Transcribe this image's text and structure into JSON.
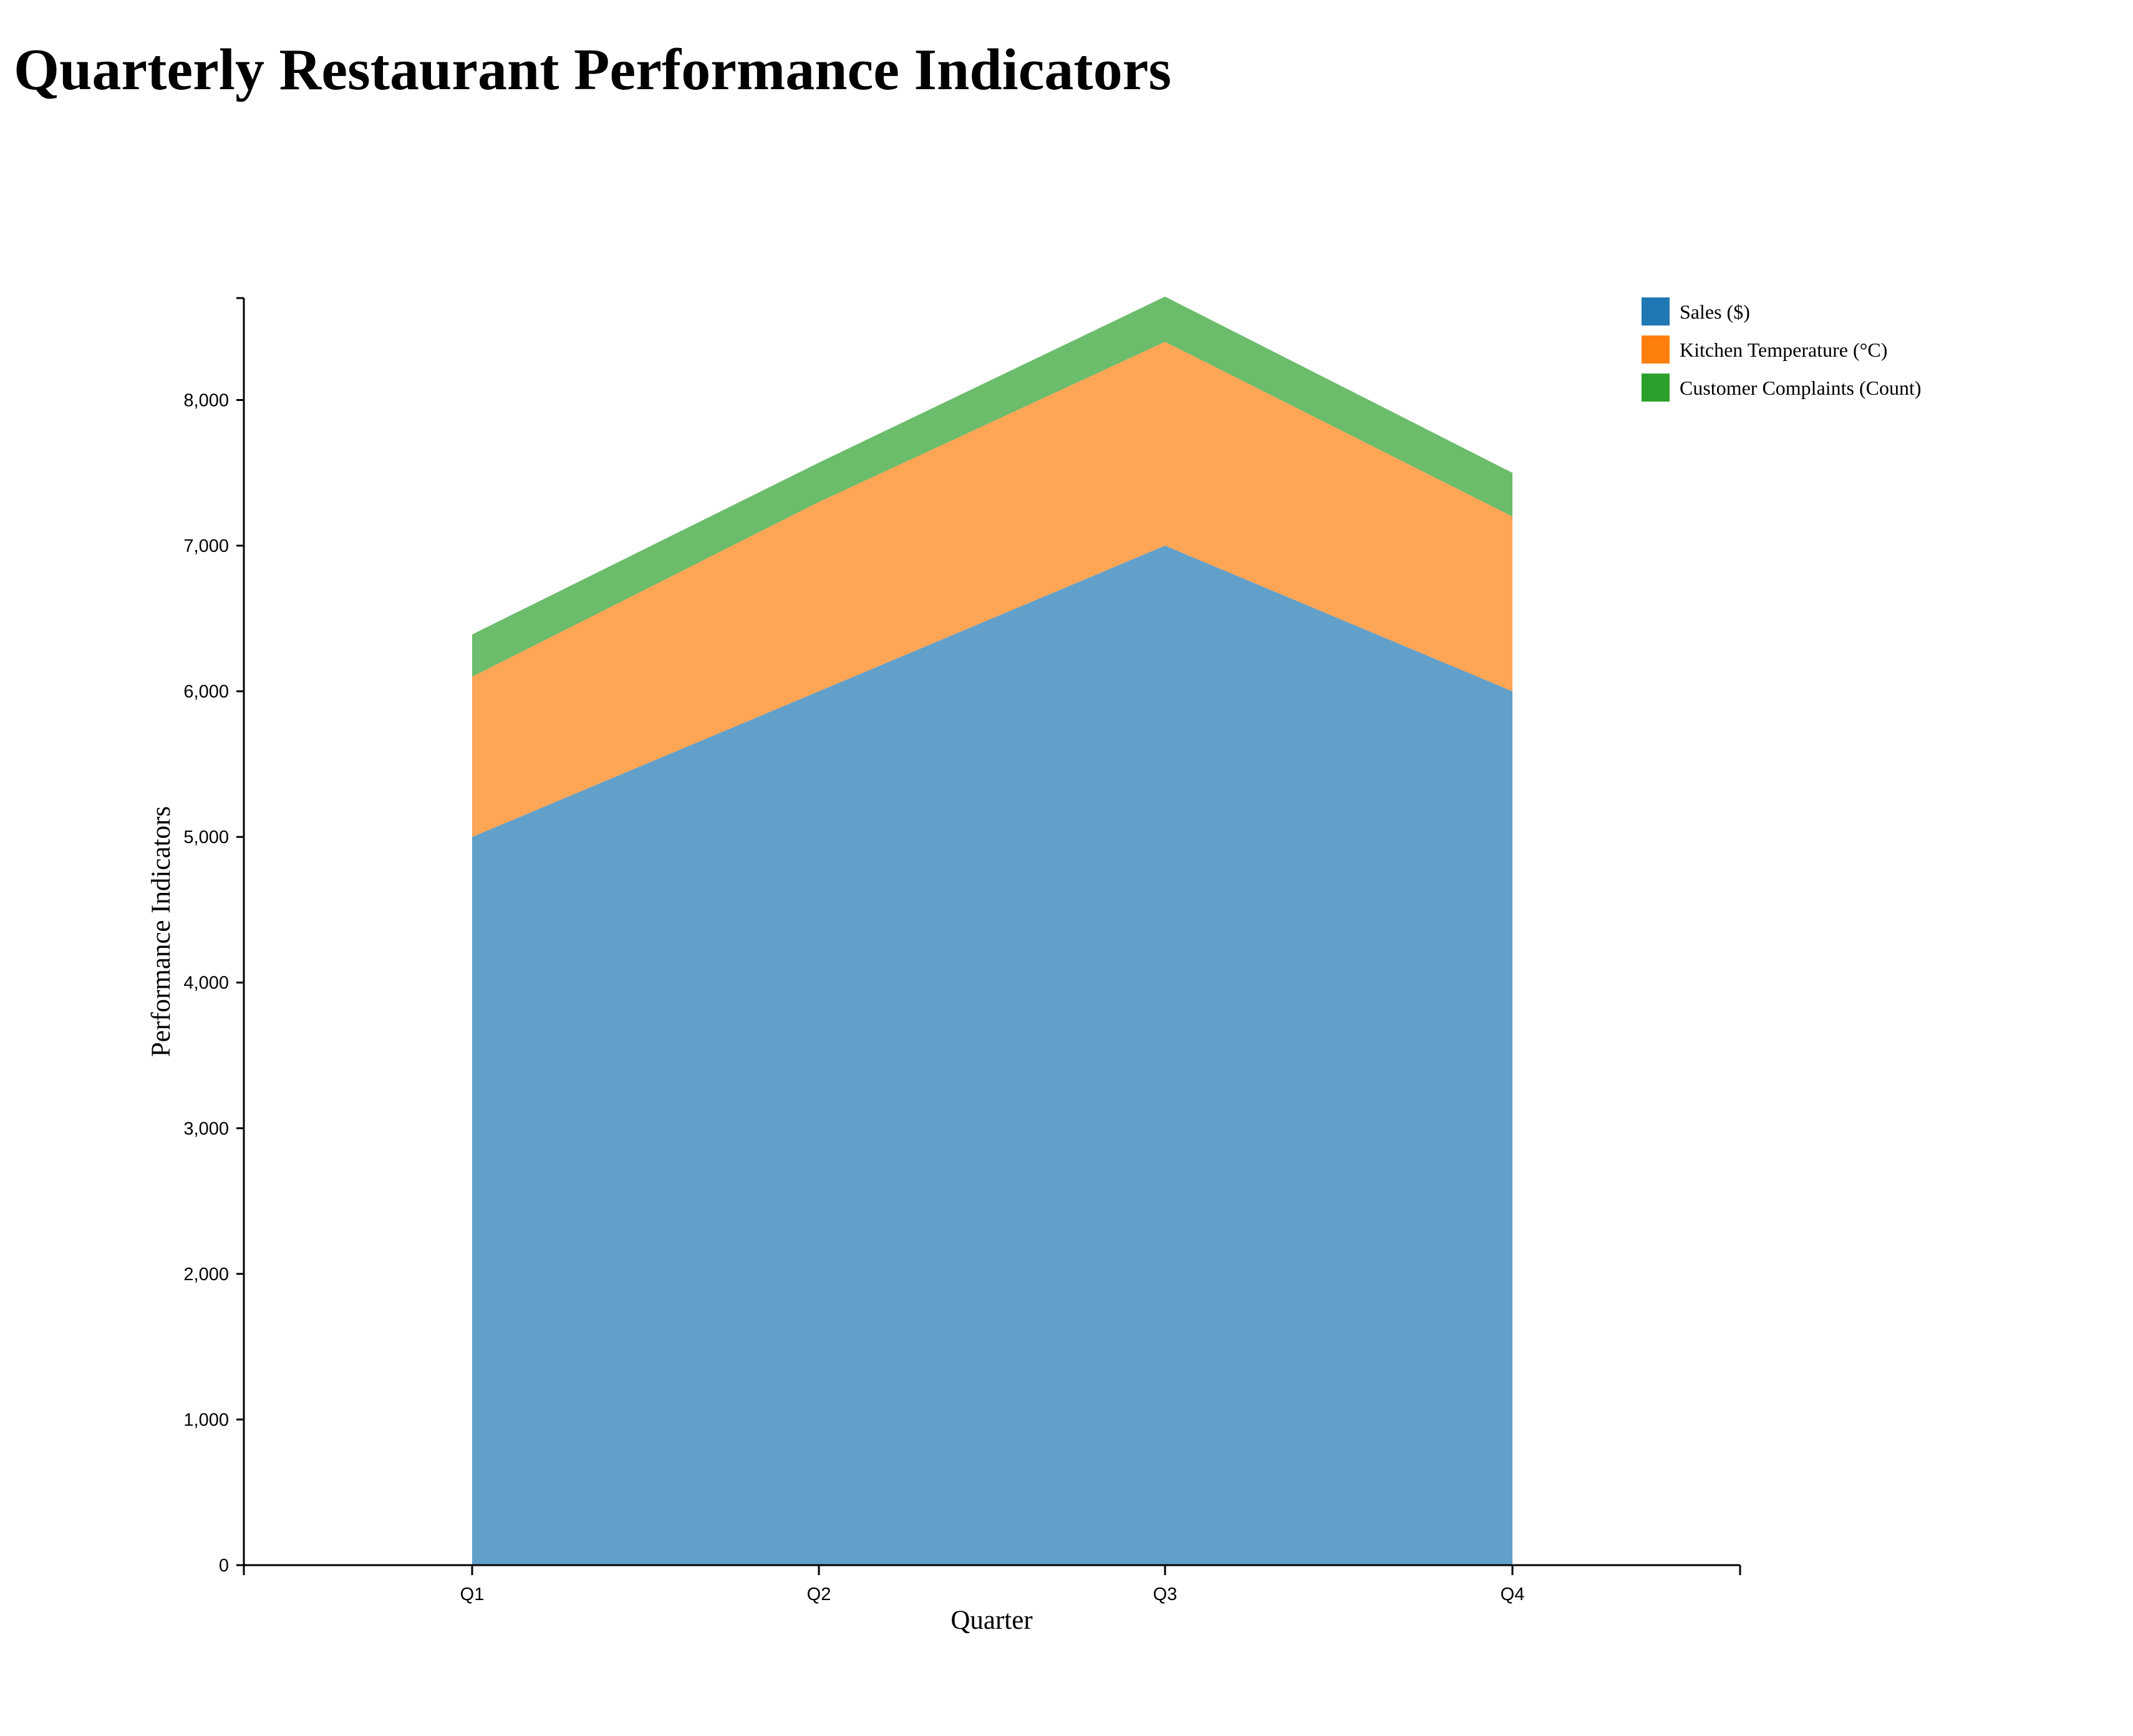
{
  "chart_data": {
    "type": "area",
    "stacked": true,
    "title": "Quarterly Restaurant Performance Indicators",
    "xlabel": "Quarter",
    "ylabel": "Performance Indicators",
    "categories": [
      "Q1",
      "Q2",
      "Q3",
      "Q4"
    ],
    "series": [
      {
        "name": "Sales ($)",
        "values": [
          5000,
          6000,
          7000,
          6000
        ],
        "color": "#1f77b4"
      },
      {
        "name": "Kitchen Temperature (°C)",
        "values": [
          1100,
          1300,
          1400,
          1200
        ],
        "color": "#ff7f0e"
      },
      {
        "name": "Customer Complaints (Count)",
        "values": [
          290,
          270,
          310,
          300
        ],
        "color": "#2ca02c"
      }
    ],
    "ylim": [
      0,
      8700
    ],
    "yticks": [
      0,
      1000,
      2000,
      3000,
      4000,
      5000,
      6000,
      7000,
      8000
    ],
    "ytick_labels": [
      "0",
      "1,000",
      "2,000",
      "3,000",
      "4,000",
      "5,000",
      "6,000",
      "7,000",
      "8,000"
    ],
    "grid": false,
    "legend_position": "top-right"
  }
}
